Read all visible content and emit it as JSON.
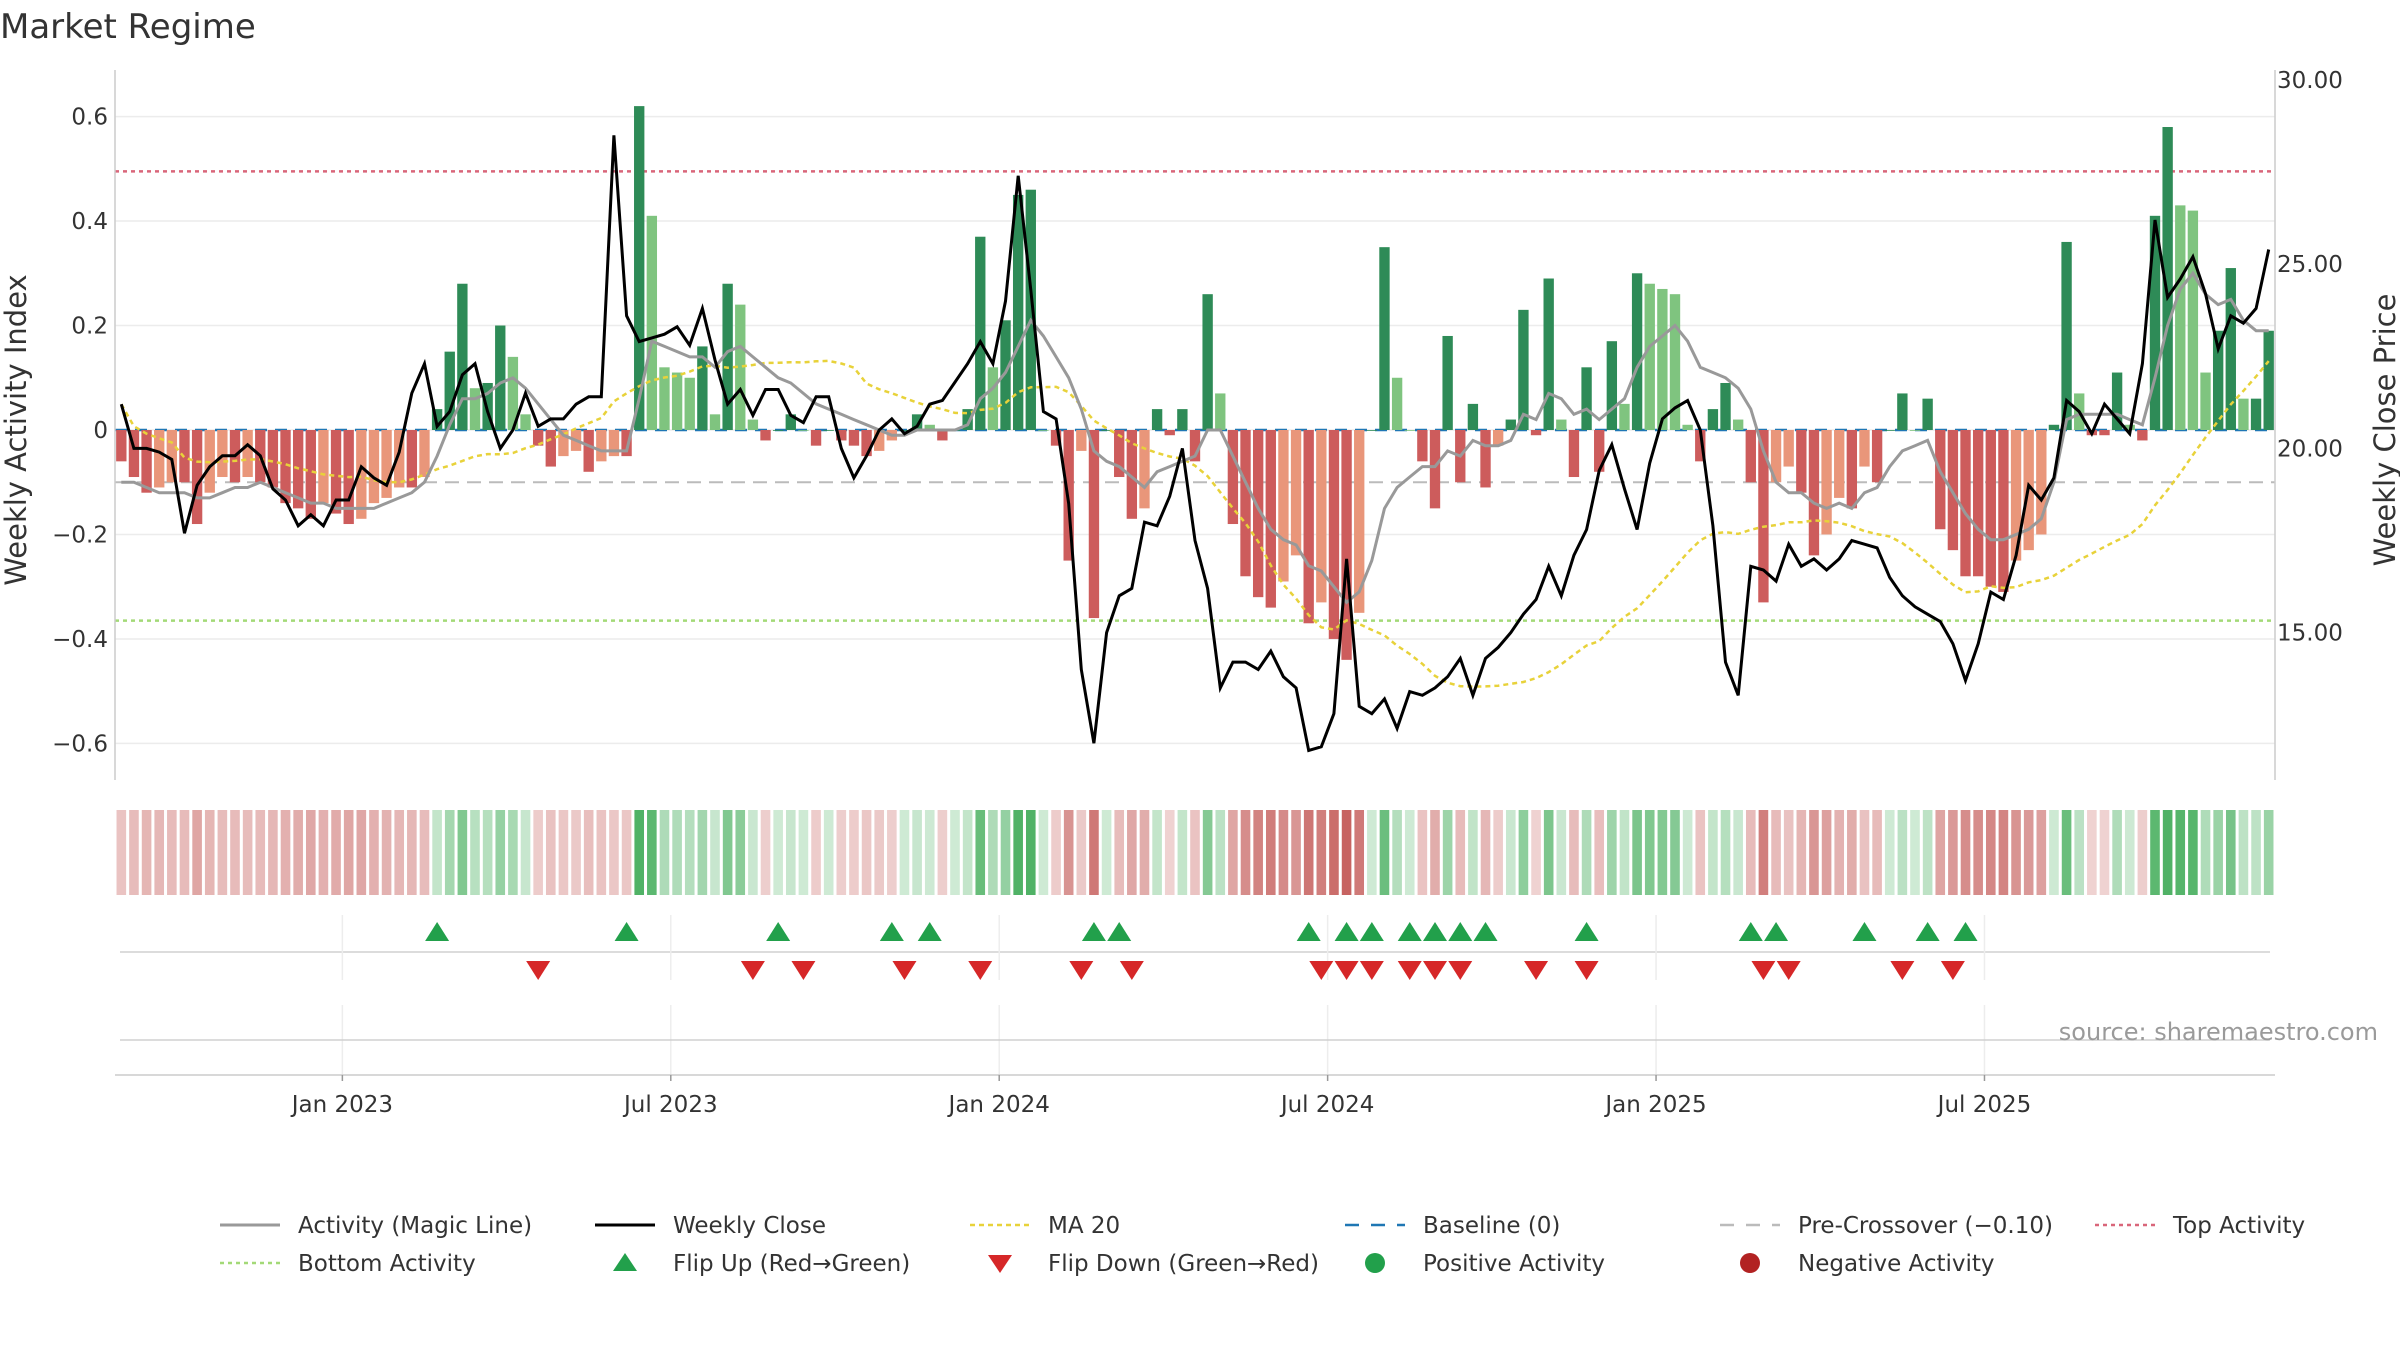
{
  "chart_data": {
    "type": "bar",
    "title": "Market Regime",
    "ylabel": "Weekly Activity Index",
    "y2label": "Weekly Close Price",
    "ylim": [
      -0.67,
      0.67
    ],
    "y2lim": [
      11.0,
      30.0
    ],
    "yticks": [
      "−0.6",
      "−0.4",
      "−0.2",
      "0",
      "0.2",
      "0.4",
      "0.6"
    ],
    "y2ticks": [
      "15.00",
      "20.00",
      "25.00",
      "30.00"
    ],
    "xticks": [
      "Jan 2023",
      "Jul 2023",
      "Jan 2024",
      "Jul 2024",
      "Jan 2025",
      "Jul 2025"
    ],
    "grid": true,
    "legend_position": "bottom",
    "source": "source: sharemaestro.com",
    "top_activity": 0.495,
    "bottom_activity": -0.365,
    "baseline": 0,
    "pre_crossover": -0.1,
    "colors": {
      "green_dark": "#2e8b57",
      "green_light": "#7fc47f",
      "red_dark": "#cd5c5c",
      "red_light": "#e9967a",
      "magic_line": "#999999",
      "close": "#000000",
      "ma20": "#e8d23a",
      "baseline": "#1f77b4",
      "pre_crossover": "#bbbbbb",
      "top_activity": "#d9667a",
      "bottom_activity": "#a3d977",
      "flip_up": "#22a04b",
      "flip_down": "#d62728",
      "positive_dot": "#22a04b",
      "negative_dot": "#b22222"
    },
    "legend": [
      {
        "key": "magic",
        "label": "Activity (Magic Line)"
      },
      {
        "key": "close",
        "label": "Weekly Close"
      },
      {
        "key": "ma20",
        "label": "MA 20"
      },
      {
        "key": "baseline",
        "label": "Baseline (0)"
      },
      {
        "key": "precross",
        "label": "Pre-Crossover (−0.10)"
      },
      {
        "key": "top",
        "label": "Top Activity"
      },
      {
        "key": "bottom",
        "label": "Bottom Activity"
      },
      {
        "key": "flipup",
        "label": "Flip Up (Red→Green)"
      },
      {
        "key": "flipdown",
        "label": "Flip Down (Green→Red)"
      },
      {
        "key": "pos",
        "label": "Positive Activity"
      },
      {
        "key": "neg",
        "label": "Negative Activity"
      }
    ],
    "activity": [
      -0.06,
      -0.09,
      -0.12,
      -0.11,
      -0.1,
      -0.1,
      -0.18,
      -0.12,
      -0.09,
      -0.1,
      -0.09,
      -0.1,
      -0.11,
      -0.14,
      -0.15,
      -0.17,
      -0.14,
      -0.16,
      -0.18,
      -0.17,
      -0.14,
      -0.13,
      -0.11,
      -0.11,
      -0.09,
      0.04,
      0.15,
      0.28,
      0.08,
      0.09,
      0.2,
      0.14,
      0.03,
      -0.03,
      -0.07,
      -0.05,
      -0.04,
      -0.08,
      -0.06,
      -0.05,
      -0.05,
      0.62,
      0.41,
      0.12,
      0.11,
      0.1,
      0.16,
      0.03,
      0.28,
      0.24,
      0.02,
      -0.02,
      0.0,
      0.03,
      0.0,
      -0.03,
      0.0,
      -0.02,
      -0.03,
      -0.05,
      -0.04,
      -0.02,
      0.0,
      0.03,
      0.01,
      -0.02,
      0.0,
      0.04,
      0.37,
      0.12,
      0.21,
      0.45,
      0.46,
      0.0,
      -0.03,
      -0.25,
      -0.04,
      -0.36,
      0.0,
      -0.09,
      -0.17,
      -0.15,
      0.04,
      -0.01,
      0.04,
      -0.06,
      0.26,
      0.07,
      -0.18,
      -0.28,
      -0.32,
      -0.34,
      -0.29,
      -0.24,
      -0.37,
      -0.33,
      -0.4,
      -0.44,
      -0.35,
      0.0,
      0.35,
      0.1,
      0.0,
      -0.06,
      -0.15,
      0.18,
      -0.1,
      0.05,
      -0.11,
      -0.03,
      0.02,
      0.23,
      -0.01,
      0.29,
      0.02,
      -0.09,
      0.12,
      -0.08,
      0.17,
      0.05,
      0.3,
      0.28,
      0.27,
      0.26,
      0.01,
      -0.06,
      0.04,
      0.09,
      0.02,
      -0.1,
      -0.33,
      -0.1,
      -0.07,
      -0.12,
      -0.24,
      -0.2,
      -0.13,
      -0.15,
      -0.07,
      -0.1,
      0.0,
      0.07,
      0.0,
      0.06,
      -0.19,
      -0.23,
      -0.28,
      -0.28,
      -0.3,
      -0.31,
      -0.25,
      -0.23,
      -0.2,
      0.01,
      0.36,
      0.07,
      -0.01,
      -0.01,
      0.11,
      0.01,
      -0.02,
      0.41,
      0.58,
      0.43,
      0.42,
      0.11,
      0.19,
      0.31,
      0.06,
      0.06,
      0.19
    ],
    "magic_line": [
      -0.1,
      -0.1,
      -0.11,
      -0.12,
      -0.12,
      -0.12,
      -0.13,
      -0.13,
      -0.12,
      -0.11,
      -0.11,
      -0.1,
      -0.11,
      -0.12,
      -0.13,
      -0.14,
      -0.14,
      -0.15,
      -0.15,
      -0.15,
      -0.15,
      -0.14,
      -0.13,
      -0.12,
      -0.1,
      -0.05,
      0.01,
      0.06,
      0.06,
      0.07,
      0.09,
      0.1,
      0.08,
      0.05,
      0.02,
      -0.01,
      -0.02,
      -0.03,
      -0.04,
      -0.04,
      -0.04,
      0.06,
      0.17,
      0.16,
      0.15,
      0.14,
      0.14,
      0.12,
      0.15,
      0.16,
      0.14,
      0.12,
      0.1,
      0.09,
      0.07,
      0.05,
      0.04,
      0.03,
      0.02,
      0.01,
      0.0,
      -0.01,
      -0.01,
      0.0,
      0.0,
      0.0,
      0.0,
      0.01,
      0.06,
      0.08,
      0.11,
      0.16,
      0.21,
      0.18,
      0.14,
      0.1,
      0.04,
      -0.04,
      -0.06,
      -0.07,
      -0.09,
      -0.11,
      -0.08,
      -0.07,
      -0.06,
      -0.05,
      0.0,
      0.0,
      -0.05,
      -0.1,
      -0.15,
      -0.19,
      -0.21,
      -0.22,
      -0.26,
      -0.27,
      -0.3,
      -0.33,
      -0.31,
      -0.25,
      -0.15,
      -0.11,
      -0.09,
      -0.07,
      -0.07,
      -0.04,
      -0.05,
      -0.02,
      -0.03,
      -0.03,
      -0.02,
      0.03,
      0.02,
      0.07,
      0.06,
      0.03,
      0.04,
      0.02,
      0.04,
      0.06,
      0.12,
      0.16,
      0.18,
      0.2,
      0.17,
      0.12,
      0.11,
      0.1,
      0.08,
      0.04,
      -0.04,
      -0.1,
      -0.12,
      -0.12,
      -0.14,
      -0.15,
      -0.14,
      -0.15,
      -0.12,
      -0.11,
      -0.07,
      -0.04,
      -0.03,
      -0.02,
      -0.08,
      -0.12,
      -0.16,
      -0.19,
      -0.21,
      -0.21,
      -0.2,
      -0.19,
      -0.17,
      -0.1,
      0.02,
      0.03,
      0.03,
      0.03,
      0.03,
      0.02,
      0.01,
      0.1,
      0.2,
      0.27,
      0.3,
      0.26,
      0.24,
      0.25,
      0.21,
      0.19,
      0.19
    ],
    "close": [
      21.2,
      20.0,
      20.0,
      19.9,
      19.7,
      17.7,
      19.0,
      19.5,
      19.8,
      19.8,
      20.1,
      19.8,
      18.9,
      18.6,
      17.9,
      18.2,
      17.9,
      18.6,
      18.6,
      19.5,
      19.2,
      19.0,
      19.9,
      21.5,
      22.3,
      20.6,
      21.0,
      22.0,
      22.3,
      21.0,
      20.0,
      20.5,
      21.5,
      20.6,
      20.8,
      20.8,
      21.2,
      21.4,
      21.4,
      28.5,
      23.6,
      22.9,
      23.0,
      23.1,
      23.3,
      22.8,
      23.8,
      22.4,
      21.2,
      21.6,
      20.9,
      21.6,
      21.6,
      20.9,
      20.7,
      21.4,
      21.4,
      20.0,
      19.2,
      19.8,
      20.5,
      20.8,
      20.4,
      20.6,
      21.2,
      21.3,
      21.8,
      22.3,
      22.9,
      22.3,
      24.0,
      27.4,
      24.3,
      21.0,
      20.8,
      18.5,
      14.0,
      12.0,
      15.0,
      16.0,
      16.2,
      18.0,
      17.9,
      18.7,
      20.0,
      17.5,
      16.2,
      13.5,
      14.2,
      14.2,
      14.0,
      14.5,
      13.8,
      13.5,
      11.8,
      11.9,
      12.8,
      17.0,
      13.0,
      12.8,
      13.2,
      12.4,
      13.4,
      13.3,
      13.5,
      13.8,
      14.3,
      13.3,
      14.3,
      14.6,
      15.0,
      15.5,
      15.9,
      16.8,
      16.0,
      17.1,
      17.8,
      19.4,
      20.1,
      18.9,
      17.8,
      19.6,
      20.8,
      21.1,
      21.3,
      20.5,
      17.9,
      14.2,
      13.3,
      16.8,
      16.7,
      16.4,
      17.4,
      16.8,
      17.0,
      16.7,
      17.0,
      17.5,
      17.4,
      17.3,
      16.5,
      16.0,
      15.7,
      15.5,
      15.3,
      14.7,
      13.7,
      14.7,
      16.1,
      15.9,
      17.1,
      19.0,
      18.6,
      19.2,
      21.3,
      21.0,
      20.4,
      21.2,
      20.8,
      20.4,
      22.3,
      26.2,
      24.1,
      24.6,
      25.2,
      24.2,
      22.7,
      23.6,
      23.4,
      23.8,
      25.4
    ]
  },
  "flip_up_idx": [
    25,
    40,
    52,
    61,
    64,
    77,
    79,
    94,
    97,
    99,
    102,
    104,
    106,
    108,
    116,
    129,
    131,
    138,
    143,
    146
  ],
  "flip_down_idx": [
    33,
    50,
    54,
    62,
    68,
    76,
    80,
    95,
    97,
    99,
    102,
    104,
    106,
    112,
    116,
    130,
    132,
    141,
    145
  ]
}
